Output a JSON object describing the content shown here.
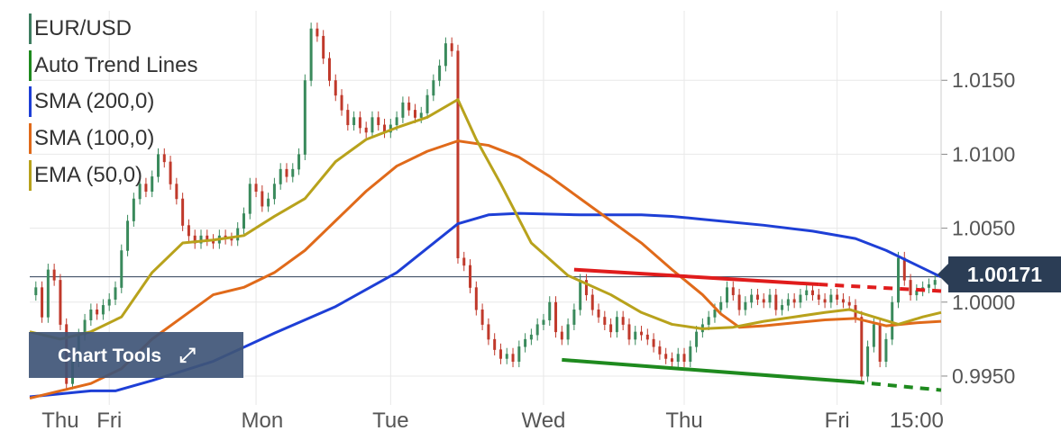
{
  "chart_data": {
    "type": "line",
    "symbol": "EUR/USD",
    "legend": [
      {
        "name": "EUR/USD",
        "color": "#3e7d60"
      },
      {
        "name": "Auto Trend Lines",
        "color": "#1e8a1e"
      },
      {
        "name": "SMA (200,0)",
        "color": "#1e3fd6"
      },
      {
        "name": "SMA (100,0)",
        "color": "#e06a1a"
      },
      {
        "name": "EMA (50,0)",
        "color": "#b8a21c"
      }
    ],
    "x_labels": [
      "Thu",
      "Fri",
      "Mon",
      "Tue",
      "Wed",
      "Thu",
      "Fri",
      "15:00"
    ],
    "x_label_pos": [
      5,
      13,
      38,
      59,
      84,
      107,
      132,
      145
    ],
    "x_grid": [
      13,
      37,
      59,
      84,
      107,
      132
    ],
    "x_range": [
      0,
      149
    ],
    "ylim": [
      0.99305,
      1.0197
    ],
    "y_ticks": [
      0.995,
      1.0,
      1.005,
      1.01,
      1.015
    ],
    "y_tick_labels": [
      "0.9950",
      "1.0000",
      "1.0050",
      "1.0100",
      "1.0150"
    ],
    "current_price": 1.00171,
    "current_price_label": "1.00171",
    "price_series": [
      {
        "x": 0,
        "y": 1.0005
      },
      {
        "x": 1,
        "y": 1.001
      },
      {
        "x": 2,
        "y": 0.999
      },
      {
        "x": 3,
        "y": 1.0022
      },
      {
        "x": 4,
        "y": 1.0015
      },
      {
        "x": 5,
        "y": 0.9985
      },
      {
        "x": 6,
        "y": 0.9945
      },
      {
        "x": 7,
        "y": 0.996
      },
      {
        "x": 8,
        "y": 0.9978
      },
      {
        "x": 9,
        "y": 0.9988
      },
      {
        "x": 10,
        "y": 0.9995
      },
      {
        "x": 11,
        "y": 0.9992
      },
      {
        "x": 12,
        "y": 0.9998
      },
      {
        "x": 13,
        "y": 1.0002
      },
      {
        "x": 14,
        "y": 1.001
      },
      {
        "x": 15,
        "y": 1.0035
      },
      {
        "x": 16,
        "y": 1.0055
      },
      {
        "x": 17,
        "y": 1.007
      },
      {
        "x": 18,
        "y": 1.008
      },
      {
        "x": 19,
        "y": 1.0075
      },
      {
        "x": 20,
        "y": 1.0085
      },
      {
        "x": 21,
        "y": 1.01
      },
      {
        "x": 22,
        "y": 1.0095
      },
      {
        "x": 23,
        "y": 1.008
      },
      {
        "x": 24,
        "y": 1.007
      },
      {
        "x": 25,
        "y": 1.0052
      },
      {
        "x": 26,
        "y": 1.0045
      },
      {
        "x": 27,
        "y": 1.004
      },
      {
        "x": 28,
        "y": 1.0045
      },
      {
        "x": 29,
        "y": 1.0042
      },
      {
        "x": 30,
        "y": 1.004
      },
      {
        "x": 31,
        "y": 1.0045
      },
      {
        "x": 32,
        "y": 1.0043
      },
      {
        "x": 33,
        "y": 1.0042
      },
      {
        "x": 34,
        "y": 1.005
      },
      {
        "x": 35,
        "y": 1.006
      },
      {
        "x": 36,
        "y": 1.008
      },
      {
        "x": 37,
        "y": 1.0075
      },
      {
        "x": 38,
        "y": 1.0065
      },
      {
        "x": 39,
        "y": 1.007
      },
      {
        "x": 40,
        "y": 1.008
      },
      {
        "x": 41,
        "y": 1.009
      },
      {
        "x": 42,
        "y": 1.0085
      },
      {
        "x": 43,
        "y": 1.009
      },
      {
        "x": 44,
        "y": 1.01
      },
      {
        "x": 45,
        "y": 1.015
      },
      {
        "x": 46,
        "y": 1.0185
      },
      {
        "x": 47,
        "y": 1.018
      },
      {
        "x": 48,
        "y": 1.0165
      },
      {
        "x": 49,
        "y": 1.015
      },
      {
        "x": 50,
        "y": 1.014
      },
      {
        "x": 51,
        "y": 1.013
      },
      {
        "x": 52,
        "y": 1.012
      },
      {
        "x": 53,
        "y": 1.0125
      },
      {
        "x": 54,
        "y": 1.0118
      },
      {
        "x": 55,
        "y": 1.0115
      },
      {
        "x": 56,
        "y": 1.0125
      },
      {
        "x": 57,
        "y": 1.012
      },
      {
        "x": 58,
        "y": 1.0115
      },
      {
        "x": 59,
        "y": 1.012
      },
      {
        "x": 60,
        "y": 1.0125
      },
      {
        "x": 61,
        "y": 1.0135
      },
      {
        "x": 62,
        "y": 1.013
      },
      {
        "x": 63,
        "y": 1.0125
      },
      {
        "x": 64,
        "y": 1.0128
      },
      {
        "x": 65,
        "y": 1.014
      },
      {
        "x": 66,
        "y": 1.015
      },
      {
        "x": 67,
        "y": 1.016
      },
      {
        "x": 68,
        "y": 1.0175
      },
      {
        "x": 69,
        "y": 1.017
      },
      {
        "x": 70,
        "y": 1.003
      },
      {
        "x": 71,
        "y": 1.0025
      },
      {
        "x": 72,
        "y": 1.001
      },
      {
        "x": 73,
        "y": 0.9995
      },
      {
        "x": 74,
        "y": 0.9985
      },
      {
        "x": 75,
        "y": 0.9975
      },
      {
        "x": 76,
        "y": 0.9968
      },
      {
        "x": 77,
        "y": 0.9962
      },
      {
        "x": 78,
        "y": 0.9965
      },
      {
        "x": 79,
        "y": 0.996
      },
      {
        "x": 80,
        "y": 0.997
      },
      {
        "x": 81,
        "y": 0.9975
      },
      {
        "x": 82,
        "y": 0.9978
      },
      {
        "x": 83,
        "y": 0.9985
      },
      {
        "x": 84,
        "y": 0.9988
      },
      {
        "x": 85,
        "y": 1.0
      },
      {
        "x": 86,
        "y": 0.998
      },
      {
        "x": 87,
        "y": 0.9975
      },
      {
        "x": 88,
        "y": 0.9985
      },
      {
        "x": 89,
        "y": 0.9995
      },
      {
        "x": 90,
        "y": 1.0015
      },
      {
        "x": 91,
        "y": 1.0005
      },
      {
        "x": 92,
        "y": 0.9995
      },
      {
        "x": 93,
        "y": 0.999
      },
      {
        "x": 94,
        "y": 0.9985
      },
      {
        "x": 95,
        "y": 0.998
      },
      {
        "x": 96,
        "y": 0.999
      },
      {
        "x": 97,
        "y": 0.9985
      },
      {
        "x": 98,
        "y": 0.9975
      },
      {
        "x": 99,
        "y": 0.998
      },
      {
        "x": 100,
        "y": 0.9978
      },
      {
        "x": 101,
        "y": 0.9975
      },
      {
        "x": 102,
        "y": 0.997
      },
      {
        "x": 103,
        "y": 0.9965
      },
      {
        "x": 104,
        "y": 0.9962
      },
      {
        "x": 105,
        "y": 0.996
      },
      {
        "x": 106,
        "y": 0.9965
      },
      {
        "x": 107,
        "y": 0.996
      },
      {
        "x": 108,
        "y": 0.997
      },
      {
        "x": 109,
        "y": 0.998
      },
      {
        "x": 110,
        "y": 0.9985
      },
      {
        "x": 111,
        "y": 0.999
      },
      {
        "x": 112,
        "y": 0.9995
      },
      {
        "x": 113,
        "y": 1.0
      },
      {
        "x": 114,
        "y": 1.001
      },
      {
        "x": 115,
        "y": 1.0005
      },
      {
        "x": 116,
        "y": 0.9995
      },
      {
        "x": 117,
        "y": 1.0
      },
      {
        "x": 118,
        "y": 1.0005
      },
      {
        "x": 119,
        "y": 1.0002
      },
      {
        "x": 120,
        "y": 1.0
      },
      {
        "x": 121,
        "y": 1.0005
      },
      {
        "x": 122,
        "y": 0.9995
      },
      {
        "x": 123,
        "y": 0.9998
      },
      {
        "x": 124,
        "y": 1.0002
      },
      {
        "x": 125,
        "y": 1.0
      },
      {
        "x": 126,
        "y": 1.0005
      },
      {
        "x": 127,
        "y": 1.0008
      },
      {
        "x": 128,
        "y": 1.0005
      },
      {
        "x": 129,
        "y": 1.0002
      },
      {
        "x": 130,
        "y": 1.0
      },
      {
        "x": 131,
        "y": 1.0005
      },
      {
        "x": 132,
        "y": 1.0002
      },
      {
        "x": 133,
        "y": 1.0
      },
      {
        "x": 134,
        "y": 0.9998
      },
      {
        "x": 135,
        "y": 0.999
      },
      {
        "x": 136,
        "y": 0.995
      },
      {
        "x": 137,
        "y": 0.997
      },
      {
        "x": 138,
        "y": 0.9985
      },
      {
        "x": 139,
        "y": 0.996
      },
      {
        "x": 140,
        "y": 0.9975
      },
      {
        "x": 141,
        "y": 1.0
      },
      {
        "x": 142,
        "y": 1.003
      },
      {
        "x": 143,
        "y": 1.0015
      },
      {
        "x": 144,
        "y": 1.0005
      },
      {
        "x": 145,
        "y": 1.0008
      },
      {
        "x": 146,
        "y": 1.001
      },
      {
        "x": 147,
        "y": 1.0012
      },
      {
        "x": 148,
        "y": 1.0015
      }
    ],
    "sma200": [
      {
        "x": 0,
        "y": 0.9936
      },
      {
        "x": 10,
        "y": 0.994
      },
      {
        "x": 14,
        "y": 0.994
      },
      {
        "x": 20,
        "y": 0.9947
      },
      {
        "x": 30,
        "y": 0.996
      },
      {
        "x": 40,
        "y": 0.9979
      },
      {
        "x": 50,
        "y": 0.9997
      },
      {
        "x": 60,
        "y": 1.002
      },
      {
        "x": 70,
        "y": 1.0053
      },
      {
        "x": 75,
        "y": 1.0059
      },
      {
        "x": 80,
        "y": 1.006
      },
      {
        "x": 90,
        "y": 1.0059
      },
      {
        "x": 100,
        "y": 1.0059
      },
      {
        "x": 105,
        "y": 1.0058
      },
      {
        "x": 110,
        "y": 1.0056
      },
      {
        "x": 120,
        "y": 1.0052
      },
      {
        "x": 128,
        "y": 1.0048
      },
      {
        "x": 135,
        "y": 1.0043
      },
      {
        "x": 140,
        "y": 1.0035
      },
      {
        "x": 145,
        "y": 1.0025
      },
      {
        "x": 149,
        "y": 1.0017
      }
    ],
    "sma100": [
      {
        "x": 0,
        "y": 0.9935
      },
      {
        "x": 10,
        "y": 0.9945
      },
      {
        "x": 15,
        "y": 0.9955
      },
      {
        "x": 20,
        "y": 0.9975
      },
      {
        "x": 25,
        "y": 0.999
      },
      {
        "x": 30,
        "y": 1.0005
      },
      {
        "x": 35,
        "y": 1.001
      },
      {
        "x": 40,
        "y": 1.002
      },
      {
        "x": 45,
        "y": 1.0035
      },
      {
        "x": 50,
        "y": 1.0055
      },
      {
        "x": 55,
        "y": 1.0075
      },
      {
        "x": 60,
        "y": 1.0092
      },
      {
        "x": 65,
        "y": 1.0102
      },
      {
        "x": 70,
        "y": 1.0109
      },
      {
        "x": 75,
        "y": 1.0106
      },
      {
        "x": 80,
        "y": 1.0098
      },
      {
        "x": 85,
        "y": 1.0085
      },
      {
        "x": 90,
        "y": 1.007
      },
      {
        "x": 95,
        "y": 1.0055
      },
      {
        "x": 100,
        "y": 1.004
      },
      {
        "x": 105,
        "y": 1.0022
      },
      {
        "x": 110,
        "y": 1.0005
      },
      {
        "x": 113,
        "y": 0.9992
      },
      {
        "x": 116,
        "y": 0.9983
      },
      {
        "x": 120,
        "y": 0.9984
      },
      {
        "x": 125,
        "y": 0.9986
      },
      {
        "x": 130,
        "y": 0.9988
      },
      {
        "x": 135,
        "y": 0.9989
      },
      {
        "x": 140,
        "y": 0.9984
      },
      {
        "x": 145,
        "y": 0.9986
      },
      {
        "x": 149,
        "y": 0.9987
      }
    ],
    "ema50": [
      {
        "x": 0,
        "y": 0.998
      },
      {
        "x": 5,
        "y": 0.9975
      },
      {
        "x": 10,
        "y": 0.998
      },
      {
        "x": 15,
        "y": 0.999
      },
      {
        "x": 20,
        "y": 1.002
      },
      {
        "x": 25,
        "y": 1.004
      },
      {
        "x": 30,
        "y": 1.0042
      },
      {
        "x": 35,
        "y": 1.0045
      },
      {
        "x": 40,
        "y": 1.0058
      },
      {
        "x": 45,
        "y": 1.007
      },
      {
        "x": 50,
        "y": 1.0095
      },
      {
        "x": 55,
        "y": 1.011
      },
      {
        "x": 60,
        "y": 1.0118
      },
      {
        "x": 65,
        "y": 1.0125
      },
      {
        "x": 70,
        "y": 1.0137
      },
      {
        "x": 73,
        "y": 1.011
      },
      {
        "x": 77,
        "y": 1.008
      },
      {
        "x": 82,
        "y": 1.004
      },
      {
        "x": 88,
        "y": 1.0018
      },
      {
        "x": 95,
        "y": 1.0005
      },
      {
        "x": 100,
        "y": 0.9993
      },
      {
        "x": 105,
        "y": 0.9985
      },
      {
        "x": 110,
        "y": 0.9982
      },
      {
        "x": 115,
        "y": 0.9983
      },
      {
        "x": 120,
        "y": 0.9987
      },
      {
        "x": 125,
        "y": 0.999
      },
      {
        "x": 130,
        "y": 0.9993
      },
      {
        "x": 134,
        "y": 0.9995
      },
      {
        "x": 138,
        "y": 0.999
      },
      {
        "x": 142,
        "y": 0.9985
      },
      {
        "x": 146,
        "y": 0.999
      },
      {
        "x": 149,
        "y": 0.9993
      }
    ],
    "trend_lines": [
      {
        "role": "resistance",
        "color": "#e01c1c",
        "x1": 89,
        "y1": 1.0022,
        "x2": 129,
        "y2": 1.0012,
        "extend_to": 149,
        "extend_y": 1.00075
      },
      {
        "role": "support",
        "color": "#1e8a1e",
        "x1": 87,
        "y1": 0.9961,
        "x2": 135,
        "y2": 0.9946,
        "extend_to": 149,
        "extend_y": 0.99405
      }
    ],
    "chart_tools_label": "Chart Tools",
    "expand_glyph": "⤢"
  }
}
